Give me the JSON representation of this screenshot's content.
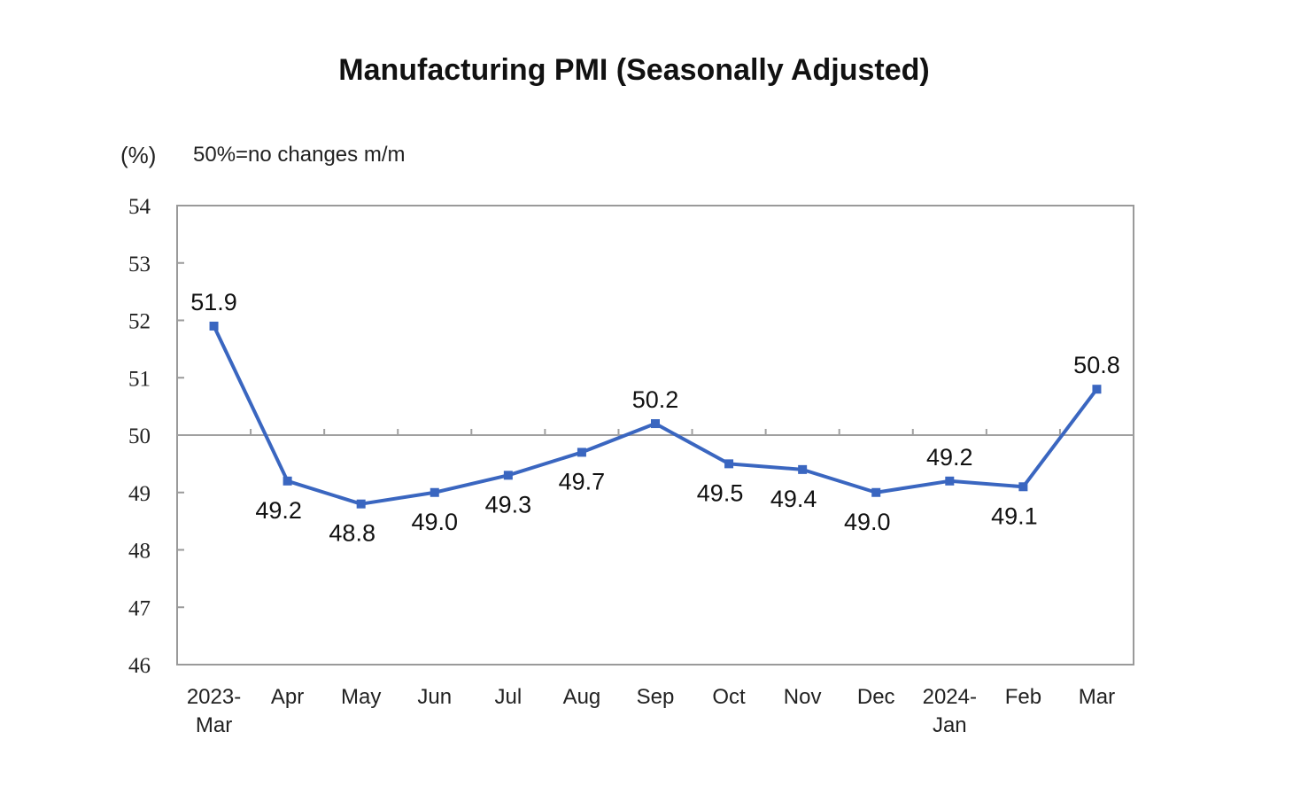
{
  "chart_data": {
    "type": "line",
    "title": "Manufacturing PMI (Seasonally Adjusted)",
    "ylabel": "(%)",
    "annotation": "50%=no changes m/m",
    "categories": [
      [
        "2023-",
        "Mar"
      ],
      [
        "Apr"
      ],
      [
        "May"
      ],
      [
        "Jun"
      ],
      [
        "Jul"
      ],
      [
        "Aug"
      ],
      [
        "Sep"
      ],
      [
        "Oct"
      ],
      [
        "Nov"
      ],
      [
        "Dec"
      ],
      [
        "2024-",
        "Jan"
      ],
      [
        "Feb"
      ],
      [
        "Mar"
      ]
    ],
    "series": [
      {
        "name": "Manufacturing PMI",
        "values": [
          51.9,
          49.2,
          48.8,
          49.0,
          49.3,
          49.7,
          50.2,
          49.5,
          49.4,
          49.0,
          49.2,
          49.1,
          50.8
        ]
      }
    ],
    "data_labels": [
      "51.9",
      "49.2",
      "48.8",
      "49.0",
      "49.3",
      "49.7",
      "50.2",
      "49.5",
      "49.4",
      "49.0",
      "49.2",
      "49.1",
      "50.8"
    ],
    "ylim": [
      46,
      54
    ],
    "yticks": [
      46,
      47,
      48,
      49,
      50,
      51,
      52,
      53,
      54
    ],
    "reference_line": 50,
    "grid": false,
    "legend": "none",
    "line_color": "#3a66c0"
  }
}
